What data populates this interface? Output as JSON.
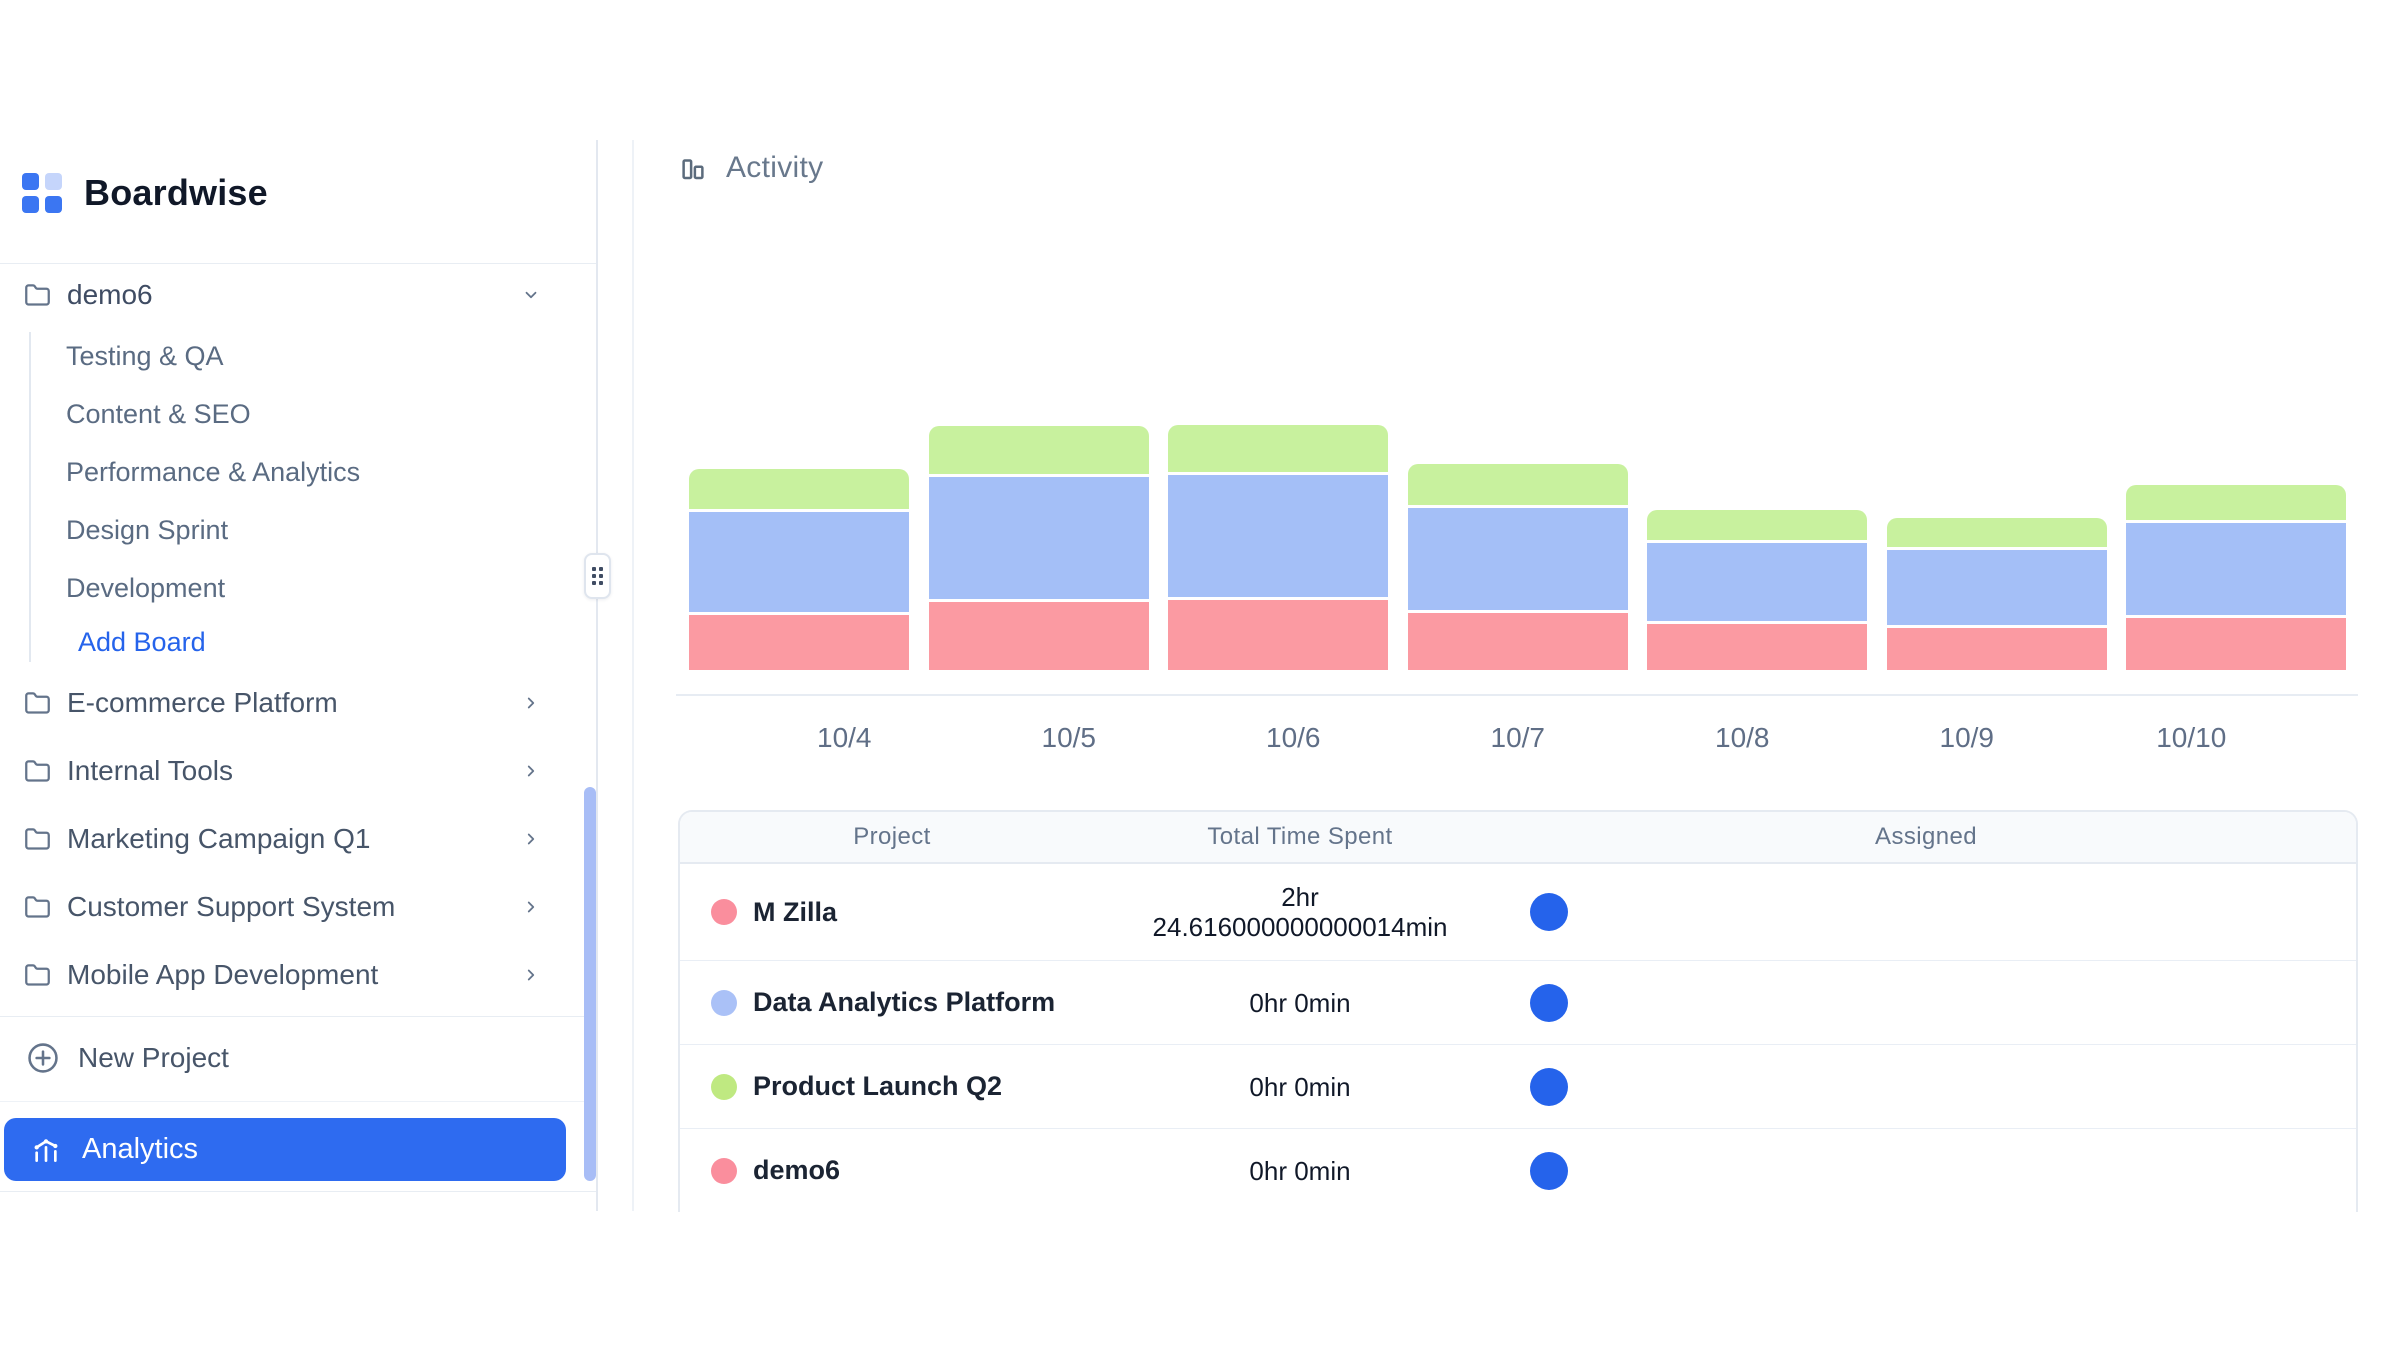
{
  "app": {
    "title": "Boardwise"
  },
  "sidebar": {
    "logo": {
      "text": "Boardwise",
      "icon": "four-squares-logo"
    },
    "active_project": {
      "label": "demo6",
      "expanded": true,
      "boards": [
        "Testing & QA",
        "Content & SEO",
        "Performance & Analytics",
        "Design Sprint",
        "Development"
      ],
      "add_board_label": "Add Board"
    },
    "collapsed_projects": [
      "E-commerce Platform",
      "Internal Tools",
      "Marketing Campaign Q1",
      "Customer Support System",
      "Mobile App Development"
    ],
    "new_project_label": "New Project",
    "analytics_label": "Analytics"
  },
  "main": {
    "section_title": "Activity",
    "table": {
      "columns": [
        "Project",
        "Total Time Spent",
        "Assigned"
      ],
      "rows": [
        {
          "project": "M Zilla",
          "dot_color": "#fa8e9d",
          "time_lines": [
            "2hr",
            "24.616000000000014min"
          ],
          "assignee_avatar_color": "#2563eb"
        },
        {
          "project": "Data Analytics Platform",
          "dot_color": "#aac1f7",
          "time_lines": [
            "0hr 0min"
          ],
          "assignee_avatar_color": "#2563eb"
        },
        {
          "project": "Product Launch Q2",
          "dot_color": "#bfe981",
          "time_lines": [
            "0hr 0min"
          ],
          "assignee_avatar_color": "#2563eb"
        },
        {
          "project": "demo6",
          "dot_color": "#fa8e9d",
          "time_lines": [
            "0hr 0min"
          ],
          "assignee_avatar_color": "#2563eb"
        }
      ]
    }
  },
  "chart_data": {
    "type": "bar",
    "stacked": true,
    "title": "Activity",
    "categories": [
      "10/4",
      "10/5",
      "10/6",
      "10/7",
      "10/8",
      "10/9",
      "10/10"
    ],
    "series": [
      {
        "name": "M Zilla (red)",
        "color": "#fb9aa2",
        "values": [
          55,
          68,
          70,
          57,
          46,
          42,
          52
        ]
      },
      {
        "name": "Data Analytics Platform (blue)",
        "color": "#a4bff7",
        "values": [
          100,
          122,
          122,
          102,
          78,
          75,
          92
        ]
      },
      {
        "name": "Product Launch Q2 (green)",
        "color": "#c8f19e",
        "values": [
          40,
          48,
          47,
          41,
          30,
          29,
          35
        ]
      }
    ],
    "value_units": "relative stacked-segment heights in screen px; chart shows no y-axis, gridlines or value labels",
    "xlabel": "date (month/day)",
    "ylabel": "",
    "grid": false,
    "legend_position": "none (series colors keyed by dots in the table below)"
  },
  "colors": {
    "accent_blue": "#2e6bf0",
    "avatar_blue": "#2563eb",
    "logo_blue": "#3b76f2",
    "logo_blue_light": "#c5d5fb",
    "scrollbar_thumb": "#a8bdf6"
  }
}
